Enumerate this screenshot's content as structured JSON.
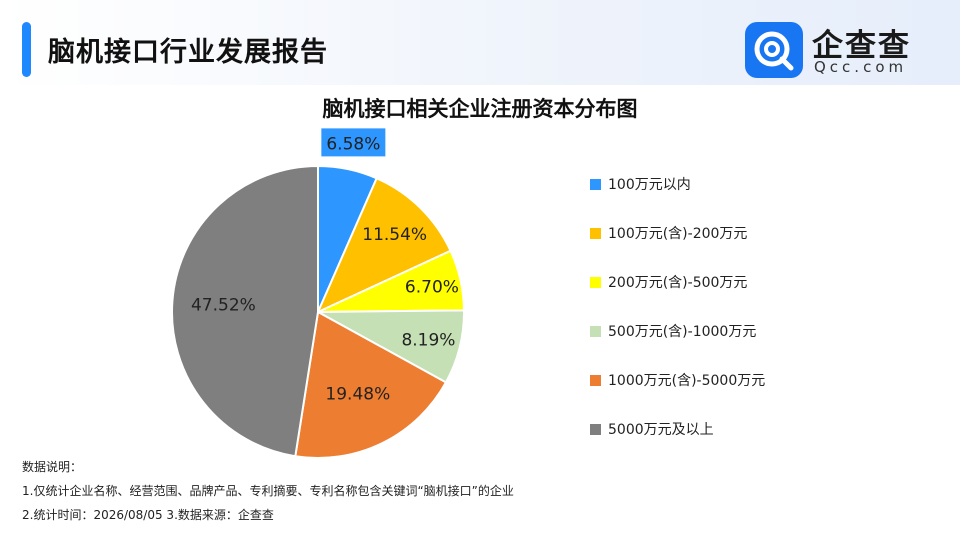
{
  "page": {
    "title": "脑机接口行业发展报告"
  },
  "logo": {
    "name": "企查查",
    "sub": "Qcc.com",
    "icon": "qcc-logo-icon"
  },
  "chart_data": {
    "type": "pie",
    "title": "脑机接口相关企业注册资本分布图",
    "categories": [
      "100万元以内",
      "100万元(含)-200万元",
      "200万元(含)-500万元",
      "500万元(含)-1000万元",
      "1000万元(含)-5000万元",
      "5000万元及以上"
    ],
    "values": [
      6.58,
      11.54,
      6.7,
      8.19,
      19.48,
      47.52
    ],
    "labels": [
      "6.58%",
      "11.54%",
      "6.70%",
      "8.19%",
      "19.48%",
      "47.52%"
    ],
    "unit": "%",
    "colors": [
      "#2e96ff",
      "#ffc000",
      "#ffff00",
      "#c5e0b4",
      "#ed7d31",
      "#7f7f7f"
    ],
    "legend_position": "right"
  },
  "notes": {
    "heading": "数据说明：",
    "line1": "1.仅统计企业名称、经营范围、品牌产品、专利摘要、专利名称包含关键词“脑机接口”的企业",
    "line2": "2.统计时间：2026/08/05    3.数据来源：企查查"
  }
}
